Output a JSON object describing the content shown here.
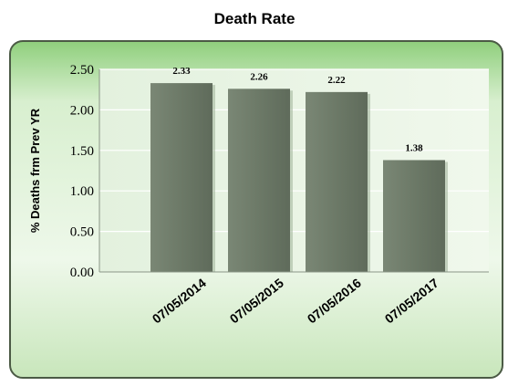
{
  "chart_data": {
    "type": "bar",
    "title": "Death Rate",
    "xlabel": "",
    "ylabel": "% Deaths frm Prev YR",
    "categories": [
      "07/05/2014",
      "07/05/2015",
      "07/05/2016",
      "07/05/2017"
    ],
    "values": [
      2.33,
      2.26,
      2.22,
      1.38
    ],
    "data_labels": [
      "2.33",
      "2.26",
      "2.22",
      "1.38"
    ],
    "ylim": [
      0,
      2.5
    ],
    "yticks": [
      "0.00",
      "0.50",
      "1.00",
      "1.50",
      "2.00",
      "2.50"
    ],
    "grid": true,
    "legend": "none",
    "colors": {
      "bar": "#6e7b68",
      "plot_background": "#e6f2e1",
      "panel_background_light": "#f2faee",
      "panel_background_dark": "#bfe0b2",
      "panel_border": "#4b5a45",
      "gridline": "#ffffff"
    }
  }
}
